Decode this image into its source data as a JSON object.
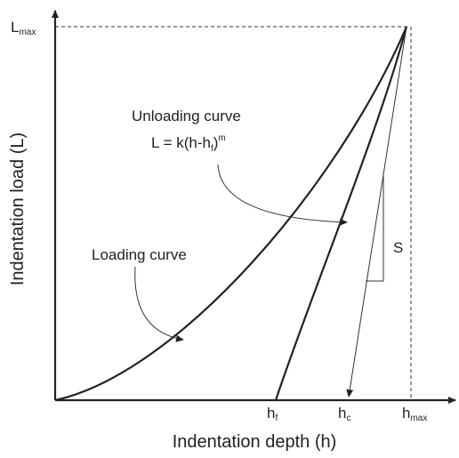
{
  "labels": {
    "lmax": {
      "base": "L",
      "sub": "max"
    },
    "unloading": "Unloading curve",
    "equation": {
      "lhs": "L = k(h-h",
      "sub": "f",
      "close": ")",
      "sup": "m"
    },
    "loading": "Loading curve",
    "stiffness": "S",
    "hf": {
      "base": "h",
      "sub": "f"
    },
    "hc": {
      "base": "h",
      "sub": "c"
    },
    "hmax": {
      "base": "h",
      "sub": "max"
    },
    "x_axis": "Indentation depth (h)",
    "y_axis": "Indentation load (L)"
  }
}
